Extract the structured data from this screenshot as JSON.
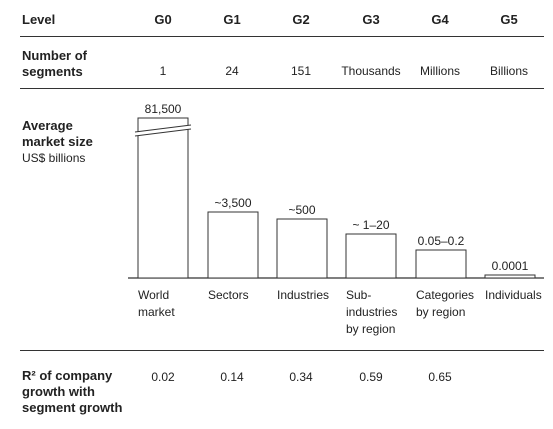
{
  "header": {
    "level_label": "Level",
    "levels": [
      "G0",
      "G1",
      "G2",
      "G3",
      "G4",
      "G5"
    ]
  },
  "segments_row": {
    "label_line1": "Number of",
    "label_line2": "segments",
    "values": [
      "1",
      "24",
      "151",
      "Thousands",
      "Millions",
      "Billions"
    ]
  },
  "market_row": {
    "label_line1": "Average",
    "label_line2": "market size",
    "unit": "US$ billions"
  },
  "categories_lines": [
    [
      "World",
      "market"
    ],
    [
      "Sectors"
    ],
    [
      "Industries"
    ],
    [
      "Sub-",
      "industries",
      "by region"
    ],
    [
      "Categories",
      "by region"
    ],
    [
      "Individuals"
    ]
  ],
  "r2_row": {
    "label_line1": "R² of company",
    "label_line2": "growth with",
    "label_line3": "segment growth",
    "values": [
      "0.02",
      "0.14",
      "0.34",
      "0.59",
      "0.65",
      ""
    ]
  },
  "chart_data": {
    "type": "bar",
    "categories": [
      "World market",
      "Sectors",
      "Industries",
      "Sub-industries by region",
      "Categories by region",
      "Individuals"
    ],
    "values": [
      81500,
      3500,
      500,
      10,
      0.1,
      0.0001
    ],
    "data_labels": [
      "81,500",
      "~3,500",
      "~500",
      "~ 1–20",
      "0.05–0.2",
      "0.0001"
    ],
    "axis_break_on_first_bar": true,
    "ylabel": "Average market size US$ billions"
  }
}
